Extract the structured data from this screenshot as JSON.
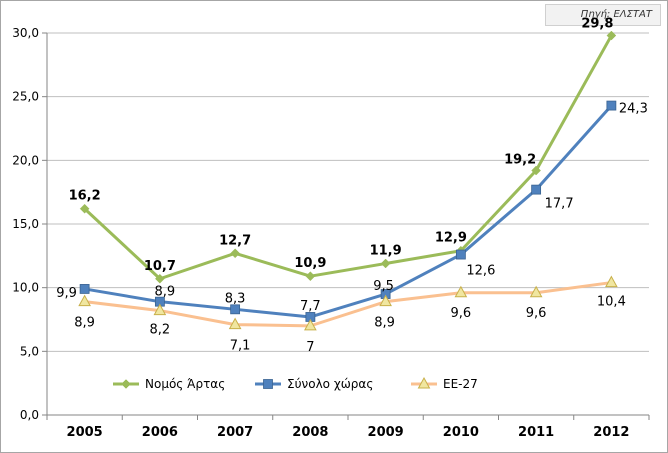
{
  "source": "Πηγή: ΕΛΣΤΑΤ",
  "chart_data": {
    "type": "line",
    "title": "",
    "xlabel": "",
    "ylabel": "",
    "categories": [
      "2005",
      "2006",
      "2007",
      "2008",
      "2009",
      "2010",
      "2011",
      "2012"
    ],
    "ylim": [
      0,
      30
    ],
    "yticks": [
      "0,0",
      "5,0",
      "10,0",
      "15,0",
      "20,0",
      "25,0",
      "30,0"
    ],
    "grid": true,
    "legend_position": "bottom",
    "series": [
      {
        "name": "Νομός Άρτας",
        "values": [
          16.2,
          10.7,
          12.7,
          10.9,
          11.9,
          12.9,
          19.2,
          29.8
        ],
        "labels": [
          "16,2",
          "10,7",
          "12,7",
          "10,9",
          "11,9",
          "12,9",
          "19,2",
          "29,8"
        ],
        "color": "#9bbb59",
        "marker": "diamond"
      },
      {
        "name": "Σύνολο χώρας",
        "values": [
          9.9,
          8.9,
          8.3,
          7.7,
          9.5,
          12.6,
          17.7,
          24.3
        ],
        "labels": [
          "9,9",
          "8,9",
          "8,3",
          "7,7",
          "9,5",
          "12,6",
          "17,7",
          "24,3"
        ],
        "color": "#4f81bd",
        "marker": "square"
      },
      {
        "name": "ΕΕ-27",
        "values": [
          8.9,
          8.2,
          7.1,
          7.0,
          8.9,
          9.6,
          9.6,
          10.4
        ],
        "labels": [
          "8,9",
          "8,2",
          "7,1",
          "7",
          "8,9",
          "9,6",
          "9,6",
          "10,4"
        ],
        "color": "#fac090",
        "marker": "triangle"
      }
    ]
  }
}
